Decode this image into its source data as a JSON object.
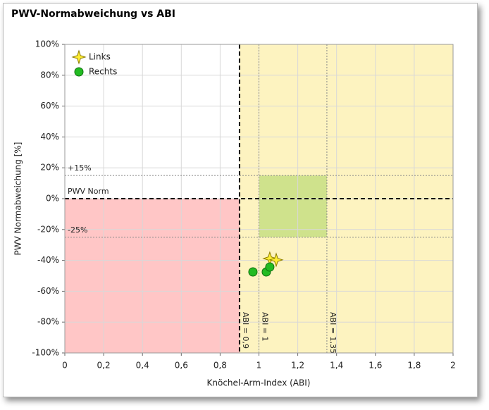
{
  "chart_data": {
    "type": "scatter",
    "title": "PWV-Normabweichung vs ABI",
    "x_label": "Knöchel-Arm-Index (ABI)",
    "y_label": "PWV Normabweichung [%]",
    "xlim": [
      0,
      2
    ],
    "ylim": [
      -100,
      100
    ],
    "xticks": [
      0,
      {
        "value": 0.2,
        "label": "0,2"
      },
      {
        "value": 0.4,
        "label": "0,4"
      },
      {
        "value": 0.6,
        "label": "0,6"
      },
      {
        "value": 0.8,
        "label": "0,8"
      },
      1,
      {
        "value": 1.2,
        "label": "1,2"
      },
      {
        "value": 1.4,
        "label": "1,4"
      },
      {
        "value": 1.6,
        "label": "1,6"
      },
      {
        "value": 1.8,
        "label": "1,8"
      },
      2
    ],
    "yticks": [
      {
        "value": -100,
        "label": "-100%"
      },
      {
        "value": -80,
        "label": "-80%"
      },
      {
        "value": -60,
        "label": "-60%"
      },
      {
        "value": -40,
        "label": "-40%"
      },
      {
        "value": -20,
        "label": "-20%"
      },
      {
        "value": 0,
        "label": "0%"
      },
      {
        "value": 20,
        "label": "20%"
      },
      {
        "value": 40,
        "label": "40%"
      },
      {
        "value": 60,
        "label": "60%"
      },
      {
        "value": 80,
        "label": "80%"
      },
      {
        "value": 100,
        "label": "100%"
      }
    ],
    "grid": true,
    "legend": "top-left",
    "regions": [
      {
        "x": [
          0.9,
          2
        ],
        "y": [
          -100,
          100
        ],
        "color": "#fdf3c0"
      },
      {
        "x": [
          0,
          0.9
        ],
        "y": [
          -100,
          0
        ],
        "color": "#ffc6c6"
      },
      {
        "x": [
          1,
          1.35
        ],
        "y": [
          -25,
          15
        ],
        "color": "#cfe28c"
      }
    ],
    "x_lines": [
      {
        "value": 0.9,
        "label": "ABI = 0,9",
        "bold": true
      },
      {
        "value": 1,
        "label": "ABI = 1",
        "bold": false
      },
      {
        "value": 1.35,
        "label": "ABI = 1,35",
        "bold": false
      }
    ],
    "y_lines": [
      {
        "value": 15,
        "label": "+15%",
        "bold": false
      },
      {
        "value": 0,
        "label": "PWV Norm",
        "bold": true
      },
      {
        "value": -25,
        "label": "-25%",
        "bold": false
      }
    ],
    "series": [
      {
        "name": "Links",
        "marker": "star",
        "color": "#ffee33",
        "x": [
          1.056,
          1.089
        ],
        "values": [
          -38.8,
          -39.7
        ]
      },
      {
        "name": "Rechts",
        "marker": "circle",
        "color": "#22bb22",
        "x": [
          0.969,
          1.038,
          1.056
        ],
        "values": [
          -47.5,
          -47.5,
          -44.3
        ]
      }
    ]
  }
}
